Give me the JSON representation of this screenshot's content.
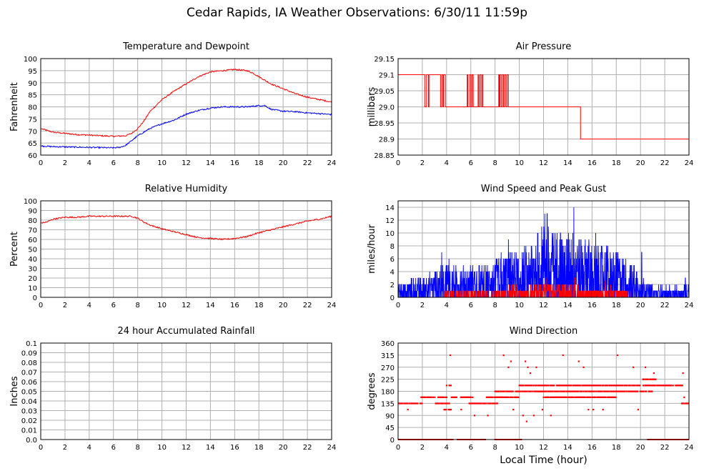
{
  "page": {
    "title": "Cedar Rapids, IA Weather Observations: 6/30/11 11:59p",
    "xlabel_bottom": "Local Time (hour)"
  },
  "chart_data": [
    {
      "type": "line",
      "title": "Temperature and Dewpoint",
      "xlabel": "",
      "ylabel": "Fahrenheit",
      "xlim": [
        0,
        24
      ],
      "ylim": [
        60,
        100
      ],
      "xticks": [
        0,
        2,
        4,
        6,
        8,
        10,
        12,
        14,
        16,
        18,
        20,
        22,
        24
      ],
      "yticks": [
        60,
        65,
        70,
        75,
        80,
        85,
        90,
        95,
        100
      ],
      "grid": true,
      "colors": [
        "#ff0000",
        "#0000ff"
      ],
      "series": [
        {
          "color": "#ff0000",
          "x": [
            0,
            1,
            2,
            3,
            4,
            5,
            6,
            7,
            7.5,
            8,
            8.5,
            9,
            9.5,
            10,
            11,
            12,
            13,
            14,
            15,
            16,
            17,
            17.5,
            18,
            18.5,
            19,
            20,
            21,
            22,
            23,
            24
          ],
          "y": [
            71,
            69.5,
            69,
            68.5,
            68.3,
            68,
            67.8,
            68,
            69,
            71,
            74,
            78,
            80.5,
            83,
            86.5,
            89.5,
            92.5,
            94.5,
            95,
            95.5,
            95,
            94,
            92.5,
            91,
            89.5,
            87.5,
            85.5,
            84,
            83,
            82
          ]
        },
        {
          "color": "#0000ff",
          "x": [
            0,
            1,
            2,
            3,
            4,
            5,
            6,
            6.5,
            7,
            7.5,
            8,
            8.5,
            9,
            9.5,
            10,
            11,
            12,
            13,
            14,
            15,
            16,
            17,
            18,
            18.5,
            19,
            20,
            21,
            22,
            23,
            24
          ],
          "y": [
            63.8,
            63.5,
            63.4,
            63.3,
            63.2,
            63.1,
            63,
            63.2,
            64,
            66,
            68,
            69.5,
            71,
            72,
            73,
            74.5,
            77,
            78.5,
            79.5,
            80,
            80,
            80,
            80.5,
            80.5,
            79,
            78.2,
            78,
            77.5,
            77.2,
            76.8
          ]
        }
      ]
    },
    {
      "type": "line",
      "title": "Air Pressure",
      "xlabel": "",
      "ylabel": "millibars",
      "xlim": [
        0,
        24
      ],
      "ylim": [
        28.85,
        29.15
      ],
      "xticks": [
        0,
        2,
        4,
        6,
        8,
        10,
        12,
        14,
        16,
        18,
        20,
        22,
        24
      ],
      "yticks": [
        28.85,
        28.9,
        28.95,
        29.0,
        29.05,
        29.1,
        29.15
      ],
      "ytick_labels": [
        "28.85",
        "28.9",
        "28.95",
        "29.0",
        "29.05",
        "29.1",
        "29.15"
      ],
      "grid": true,
      "step": true,
      "colors": [
        "#ff0000"
      ],
      "series": [
        {
          "color": "#ff0000",
          "x": [
            0,
            2.2,
            2.35,
            2.5,
            2.55,
            3.5,
            3.6,
            3.7,
            3.75,
            3.9,
            3.95,
            5.7,
            5.75,
            5.9,
            6.0,
            6.1,
            6.2,
            6.6,
            6.65,
            6.75,
            6.85,
            6.95,
            7.0,
            8.3,
            8.35,
            8.4,
            8.5,
            8.6,
            8.7,
            8.8,
            8.9,
            9.0,
            9.1,
            9.2,
            15.05,
            24
          ],
          "y": [
            29.1,
            29.0,
            29.1,
            29.0,
            29.1,
            29.0,
            29.1,
            29.0,
            29.1,
            29.0,
            29.0,
            29.1,
            29.0,
            29.1,
            29.0,
            29.1,
            29.0,
            29.1,
            29.0,
            29.1,
            29.0,
            29.1,
            29.0,
            29.1,
            29.0,
            29.1,
            29.0,
            29.1,
            29.0,
            29.1,
            29.0,
            29.1,
            29.0,
            29.0,
            28.9,
            28.9
          ]
        }
      ]
    },
    {
      "type": "line",
      "title": "Relative Humidity",
      "xlabel": "",
      "ylabel": "Percent",
      "xlim": [
        0,
        24
      ],
      "ylim": [
        0,
        100
      ],
      "xticks": [
        0,
        2,
        4,
        6,
        8,
        10,
        12,
        14,
        16,
        18,
        20,
        22,
        24
      ],
      "yticks": [
        0,
        10,
        20,
        30,
        40,
        50,
        60,
        70,
        80,
        90,
        100
      ],
      "grid": true,
      "colors": [
        "#ff0000"
      ],
      "series": [
        {
          "color": "#ff0000",
          "x": [
            0,
            0.5,
            1,
            2,
            3,
            4,
            5,
            6,
            7,
            7.5,
            8,
            8.5,
            9,
            10,
            11,
            12,
            13,
            14,
            15,
            16,
            17,
            18,
            19,
            20,
            21,
            22,
            23,
            24
          ],
          "y": [
            77,
            78,
            81,
            83,
            83,
            84,
            84,
            84,
            84,
            84,
            82,
            78,
            75,
            71,
            68,
            65,
            62,
            61,
            60,
            61,
            63,
            67,
            70,
            73,
            76,
            79,
            81,
            84
          ]
        }
      ]
    },
    {
      "type": "line",
      "title": "Wind Speed and Peak Gust",
      "xlabel": "",
      "ylabel": "miles/hour",
      "xlim": [
        0,
        24
      ],
      "ylim": [
        0,
        15
      ],
      "xticks": [
        0,
        2,
        4,
        6,
        8,
        10,
        12,
        14,
        16,
        18,
        20,
        22,
        24
      ],
      "yticks": [
        0,
        2,
        4,
        6,
        8,
        10,
        12,
        14
      ],
      "grid": true,
      "noisy": true,
      "colors": [
        "#0000ff",
        "#ff0000"
      ],
      "series": [
        {
          "color": "#0000ff",
          "x": [
            0,
            2,
            3,
            4,
            5,
            6,
            7,
            8,
            9,
            10,
            11,
            12,
            13,
            14,
            15,
            16,
            17,
            18,
            19,
            20,
            21,
            22,
            23,
            24
          ],
          "y": [
            1.5,
            2,
            2.5,
            3.5,
            3,
            3,
            3,
            3.5,
            4.5,
            4.5,
            5.5,
            7,
            6.5,
            6.5,
            6,
            5.5,
            5,
            4.5,
            3.5,
            2.5,
            1,
            1,
            1,
            1
          ],
          "peaks": [
            [
              3.6,
              7
            ],
            [
              4.2,
              6
            ],
            [
              8.5,
              7
            ],
            [
              9.1,
              9
            ],
            [
              11.5,
              10
            ],
            [
              12.1,
              13
            ],
            [
              12.3,
              13
            ],
            [
              13.4,
              10
            ],
            [
              14.5,
              14
            ],
            [
              15.1,
              9
            ],
            [
              16.3,
              10
            ],
            [
              17.2,
              8
            ],
            [
              18,
              7
            ],
            [
              20.1,
              7
            ],
            [
              23.7,
              3
            ]
          ]
        },
        {
          "color": "#ff0000",
          "x": [
            0,
            3,
            4,
            6,
            8,
            9,
            10,
            11,
            12,
            13,
            14,
            15,
            16,
            17,
            18,
            19,
            20,
            24
          ],
          "y": [
            0,
            0,
            0.5,
            0.5,
            0.5,
            1,
            1,
            1,
            1.5,
            1,
            1.5,
            1,
            1,
            1,
            1,
            0.5,
            0,
            0
          ],
          "peaks": [
            [
              12.2,
              3
            ],
            [
              14.6,
              3
            ],
            [
              17.1,
              2.5
            ]
          ]
        }
      ]
    },
    {
      "type": "line",
      "title": "24 hour Accumulated Rainfall",
      "xlabel": "",
      "ylabel": "Inches",
      "xlim": [
        0,
        24
      ],
      "ylim": [
        0,
        0.1
      ],
      "xticks": [
        0,
        2,
        4,
        6,
        8,
        10,
        12,
        14,
        16,
        18,
        20,
        22,
        24
      ],
      "yticks": [
        0,
        0.01,
        0.02,
        0.03,
        0.04,
        0.05,
        0.06,
        0.07,
        0.08,
        0.09,
        0.1
      ],
      "ytick_labels": [
        "0.0",
        "0.01",
        "0.02",
        "0.03",
        "0.04",
        "0.05",
        "0.06",
        "0.07",
        "0.08",
        "0.09",
        "0.1"
      ],
      "grid": true,
      "colors": [
        "#ff0000"
      ],
      "series": [
        {
          "color": "#ff0000",
          "x": [
            0,
            24
          ],
          "y": [
            0,
            0
          ]
        }
      ]
    },
    {
      "type": "scatter",
      "title": "Wind Direction",
      "xlabel": "Local Time (hour)",
      "ylabel": "degrees",
      "xlim": [
        0,
        24
      ],
      "ylim": [
        0,
        360
      ],
      "xticks": [
        0,
        2,
        4,
        6,
        8,
        10,
        12,
        14,
        16,
        18,
        20,
        22,
        24
      ],
      "yticks": [
        0,
        45,
        90,
        135,
        180,
        225,
        270,
        315,
        360
      ],
      "grid": true,
      "colors": [
        "#ff0000"
      ],
      "series": [
        {
          "color": "#ff0000",
          "bands": [
            [
              0,
              24,
              0,
              "sparse-mid"
            ],
            [
              0,
              2,
              135
            ],
            [
              1.9,
              4,
              158
            ],
            [
              3.1,
              4.3,
              135
            ],
            [
              3.8,
              4.5,
              112
            ],
            [
              4,
              4.4,
              202
            ],
            [
              4.4,
              6.2,
              158
            ],
            [
              5.8,
              8.2,
              135
            ],
            [
              7.3,
              8.6,
              158
            ],
            [
              8,
              9.5,
              180
            ],
            [
              8.6,
              10,
              158
            ],
            [
              9.7,
              12,
              180
            ],
            [
              10,
              21,
              202
            ],
            [
              11.5,
              21,
              180
            ],
            [
              12,
              18,
              158
            ],
            [
              20.2,
              21.3,
              225
            ],
            [
              21,
              23.5,
              202
            ],
            [
              23.4,
              24,
              135
            ]
          ],
          "points": [
            [
              0.8,
              112
            ],
            [
              4.3,
              315
            ],
            [
              8.7,
              315
            ],
            [
              9.3,
              292
            ],
            [
              9.1,
              270
            ],
            [
              10.5,
              292
            ],
            [
              10.7,
              270
            ],
            [
              10.9,
              248
            ],
            [
              11.4,
              270
            ],
            [
              13.6,
              315
            ],
            [
              14.9,
              292
            ],
            [
              15.3,
              270
            ],
            [
              18.1,
              315
            ],
            [
              19.4,
              270
            ],
            [
              20.4,
              270
            ],
            [
              21.1,
              248
            ],
            [
              23.5,
              248
            ],
            [
              23.6,
              158
            ],
            [
              10.6,
              68
            ],
            [
              11.2,
              90
            ],
            [
              10.3,
              90
            ],
            [
              11.9,
              112
            ],
            [
              12.6,
              90
            ],
            [
              15.7,
              112
            ],
            [
              16.1,
              112
            ],
            [
              16.9,
              112
            ],
            [
              19.8,
              112
            ],
            [
              6.3,
              90
            ],
            [
              7.4,
              90
            ],
            [
              9.5,
              112
            ],
            [
              5.2,
              112
            ]
          ],
          "zero_ranges": [
            [
              0,
              4.5
            ],
            [
              4.9,
              7.2
            ],
            [
              8,
              10.2
            ],
            [
              20.6,
              24
            ]
          ]
        }
      ]
    }
  ]
}
